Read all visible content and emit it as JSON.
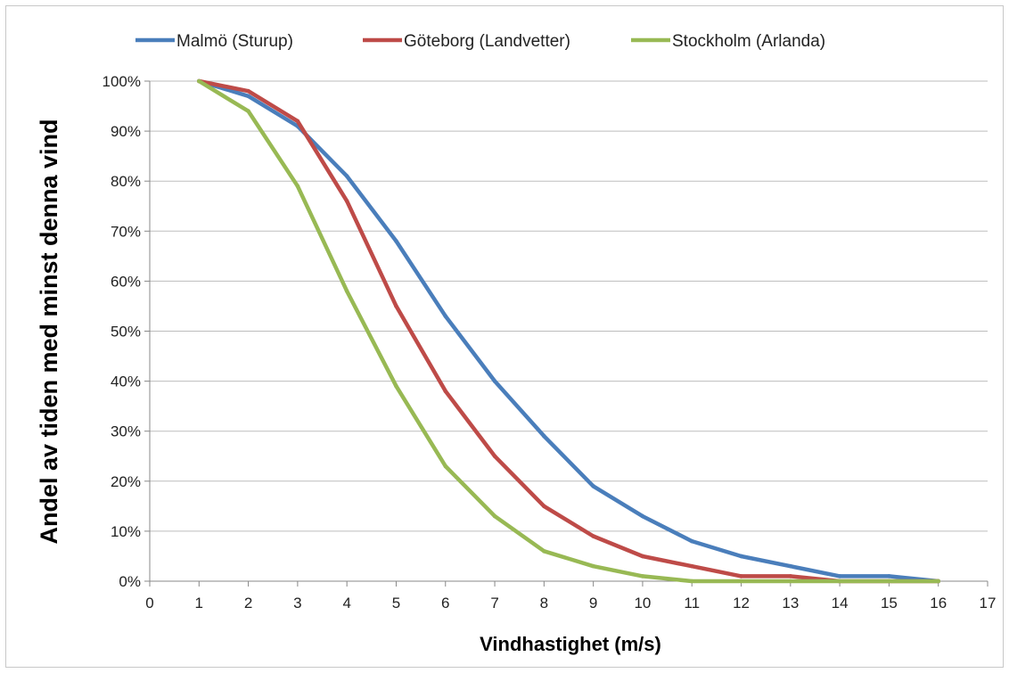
{
  "chart_data": {
    "type": "line",
    "title": "",
    "xlabel": "Vindhastighet (m/s)",
    "ylabel": "Andel av tiden med minst denna vind",
    "xlim": [
      0,
      17
    ],
    "ylim": [
      0,
      100
    ],
    "x_ticks": [
      "0",
      "1",
      "2",
      "3",
      "4",
      "5",
      "6",
      "7",
      "8",
      "9",
      "10",
      "11",
      "12",
      "13",
      "14",
      "15",
      "16",
      "17"
    ],
    "y_ticks": [
      "0%",
      "10%",
      "20%",
      "30%",
      "40%",
      "50%",
      "60%",
      "70%",
      "80%",
      "90%",
      "100%"
    ],
    "grid": "horizontal",
    "legend_position": "top",
    "x": [
      1,
      2,
      3,
      4,
      5,
      6,
      7,
      8,
      9,
      10,
      11,
      12,
      13,
      14,
      15,
      16
    ],
    "series": [
      {
        "name": "Malmö (Sturup)",
        "color": "#4a7ebb",
        "values": [
          100,
          97,
          91,
          81,
          68,
          53,
          40,
          29,
          19,
          13,
          8,
          5,
          3,
          1,
          1,
          0
        ]
      },
      {
        "name": "Göteborg (Landvetter)",
        "color": "#be4b48",
        "values": [
          100,
          98,
          92,
          76,
          55,
          38,
          25,
          15,
          9,
          5,
          3,
          1,
          1,
          0,
          0,
          0
        ]
      },
      {
        "name": "Stockholm (Arlanda)",
        "color": "#98b954",
        "values": [
          100,
          94,
          79,
          58,
          39,
          23,
          13,
          6,
          3,
          1,
          0,
          0,
          0,
          0,
          0,
          0
        ]
      }
    ]
  }
}
